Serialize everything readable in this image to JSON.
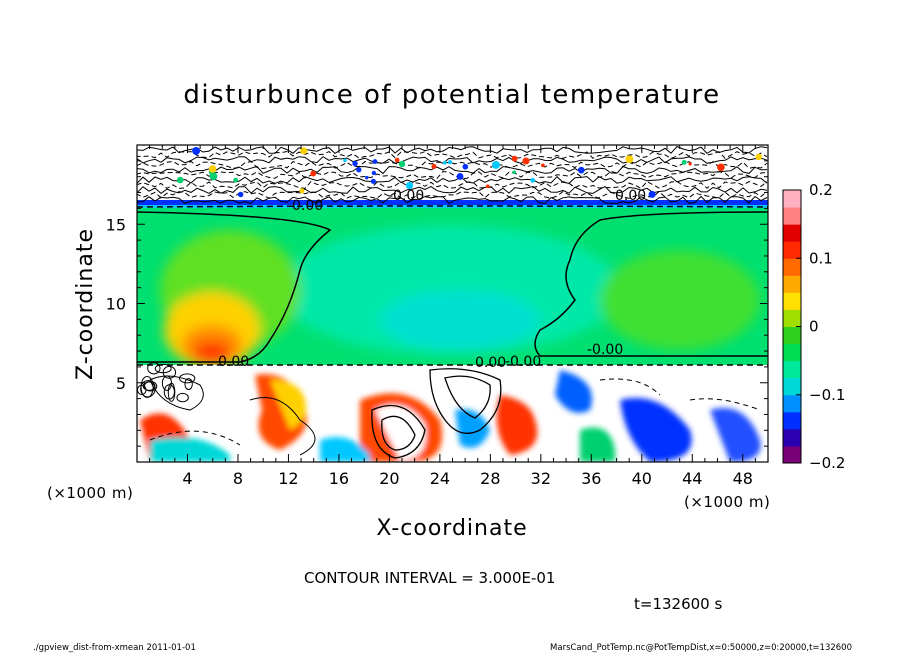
{
  "chart_data": {
    "type": "heatmap",
    "title": "disturbunce of potential temperature",
    "xlabel": "X-coordinate",
    "ylabel": "Z-coordinate",
    "x_unit": "(×1000 m)",
    "y_unit": "(×1000 m)",
    "xlim": [
      0,
      50
    ],
    "ylim": [
      0,
      20
    ],
    "x_ticks": [
      "4",
      "8",
      "12",
      "16",
      "20",
      "24",
      "28",
      "32",
      "36",
      "40",
      "44",
      "48"
    ],
    "y_ticks": [
      "5",
      "10",
      "15"
    ],
    "colorbar": {
      "range": [
        -0.2,
        0.2
      ],
      "tick_labels": [
        "0.2",
        "0.1",
        "0",
        "−0.1",
        "−0.2"
      ],
      "colors": [
        "#7a007a",
        "#2a00b0",
        "#0030ff",
        "#0090ff",
        "#00d8d8",
        "#00e89a",
        "#00dd55",
        "#30d020",
        "#a0e000",
        "#ffe000",
        "#ffaa00",
        "#ff6a00",
        "#ff2a00",
        "#e00000",
        "#ff8080",
        "#ffb0c0"
      ]
    },
    "contour_labels": [
      "-0.00",
      "0.00",
      "0.00",
      "-0.00",
      "0.00",
      "0.00",
      "-0.00"
    ],
    "contour_interval_text": "CONTOUR INTERVAL = 3.000E-01",
    "time_text": "t=132600 s"
  },
  "footer": {
    "left": "./gpview_dist-from-xmean  2011-01-01",
    "right": "MarsCand_PotTemp.nc@PotTempDist,x=0:50000,z=0:20000,t=132600"
  }
}
